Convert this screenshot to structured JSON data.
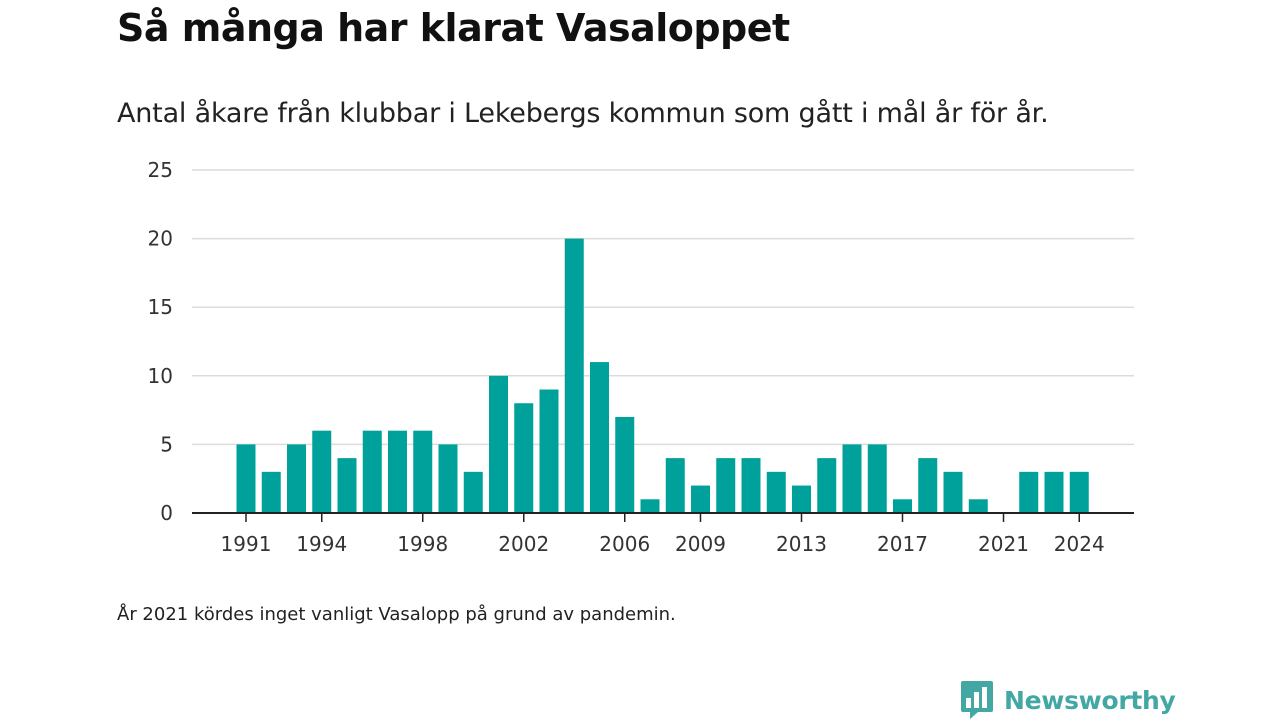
{
  "title": "Så många har klarat Vasaloppet",
  "subtitle": "Antal åkare från klubbar i Lekebergs kommun som gått i mål år för år.",
  "footnote": "År 2021 kördes inget vanligt Vasalopp på grund av pandemin.",
  "brand": {
    "name": "Newsworthy",
    "color": "#43a8a4",
    "icon": "bar-chart-logo-icon"
  },
  "chart_data": {
    "type": "bar",
    "x": [
      1991,
      1992,
      1993,
      1994,
      1995,
      1996,
      1997,
      1998,
      1999,
      2000,
      2001,
      2002,
      2003,
      2004,
      2005,
      2006,
      2007,
      2008,
      2009,
      2010,
      2011,
      2012,
      2013,
      2014,
      2015,
      2016,
      2017,
      2018,
      2019,
      2020,
      2021,
      2022,
      2023,
      2024
    ],
    "values": [
      5,
      3,
      5,
      6,
      4,
      6,
      6,
      6,
      5,
      3,
      10,
      8,
      9,
      20,
      11,
      7,
      1,
      4,
      2,
      4,
      4,
      3,
      2,
      4,
      5,
      5,
      1,
      4,
      3,
      1,
      0,
      3,
      3,
      3
    ],
    "x_tick_labels": [
      "1991",
      "1994",
      "1998",
      "2002",
      "2006",
      "2009",
      "2013",
      "2017",
      "2021",
      "2024"
    ],
    "y_ticks": [
      0,
      5,
      10,
      15,
      20,
      25
    ],
    "ylim": [
      0,
      25
    ],
    "title": "Så många har klarat Vasaloppet",
    "subtitle": "Antal åkare från klubbar i Lekebergs kommun som gått i mål år för år.",
    "xlabel": "",
    "ylabel": "",
    "grid": true,
    "bar_color": "#00a19a"
  }
}
